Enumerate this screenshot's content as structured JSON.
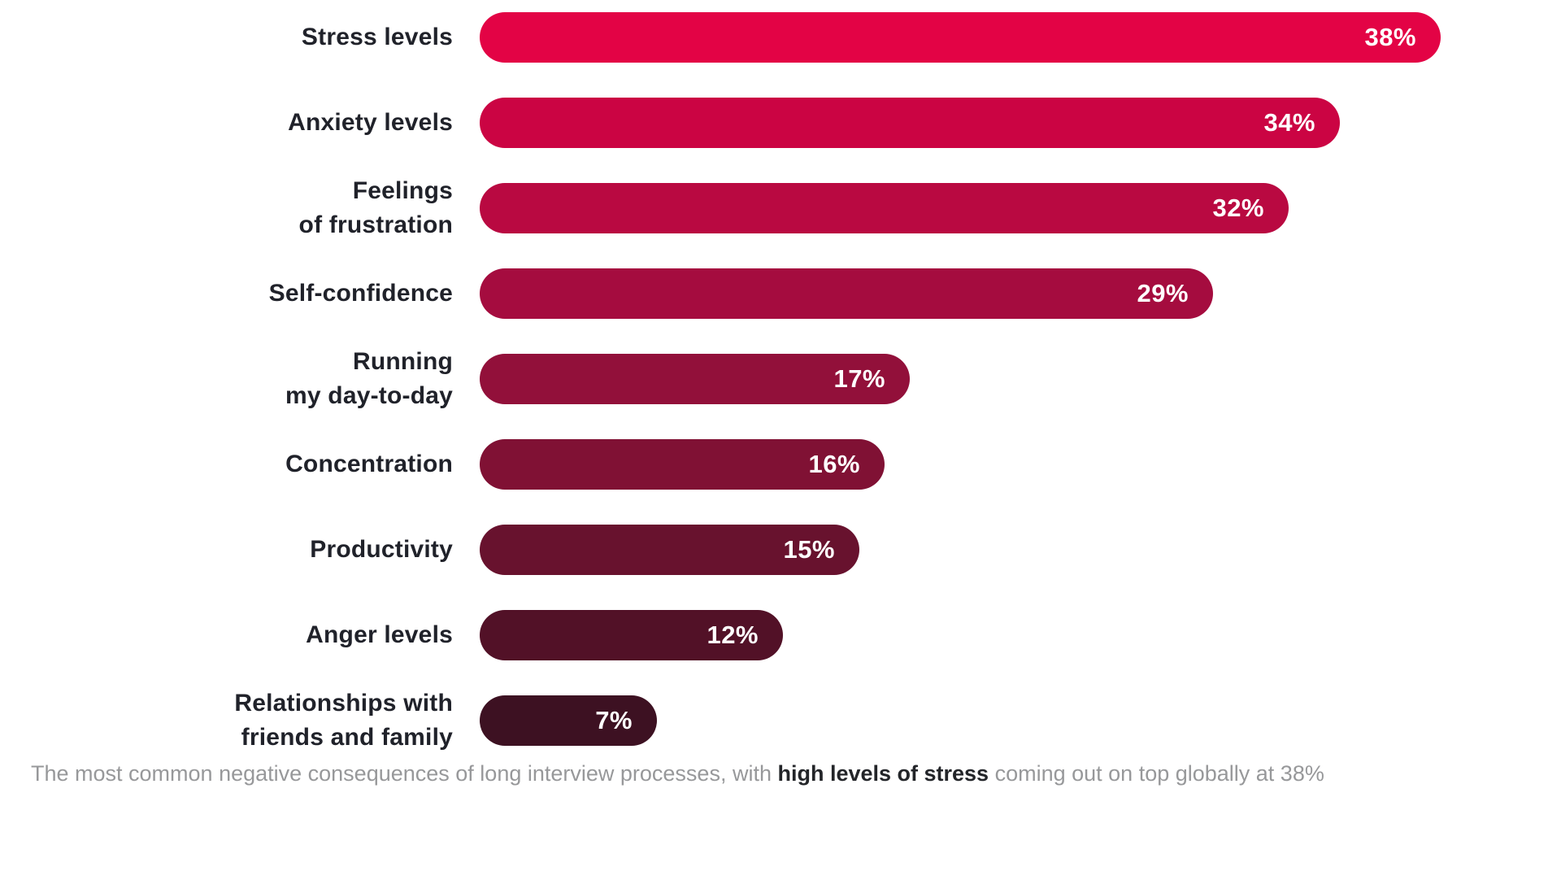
{
  "chart_data": {
    "type": "bar",
    "orientation": "horizontal",
    "title": "",
    "xlabel": "",
    "ylabel": "",
    "xlim": [
      0,
      38
    ],
    "grid": false,
    "legend": false,
    "categories": [
      "Stress levels",
      "Anxiety levels",
      "Feelings\nof frustration",
      "Self-confidence",
      "Running\nmy day-to-day",
      "Concentration",
      "Productivity",
      "Anger levels",
      "Relationships with\nfriends and family"
    ],
    "values": [
      38,
      34,
      32,
      29,
      17,
      16,
      15,
      12,
      7
    ],
    "value_labels": [
      "38%",
      "34%",
      "32%",
      "29%",
      "17%",
      "16%",
      "15%",
      "12%",
      "7%"
    ],
    "bar_colors": [
      "#e30345",
      "#cb0443",
      "#b90941",
      "#a50c3f",
      "#92103a",
      "#801134",
      "#68122e",
      "#521127",
      "#3d1122"
    ],
    "category_label_color": "#20222a",
    "value_label_color": "#ffffff"
  },
  "caption": {
    "part1": "The most common negative consequences of long interview processes, with ",
    "highlight": "high levels of stress",
    "part2": " coming out on top globally at 38%",
    "text_color": "#97989a",
    "highlight_color": "#232529"
  }
}
